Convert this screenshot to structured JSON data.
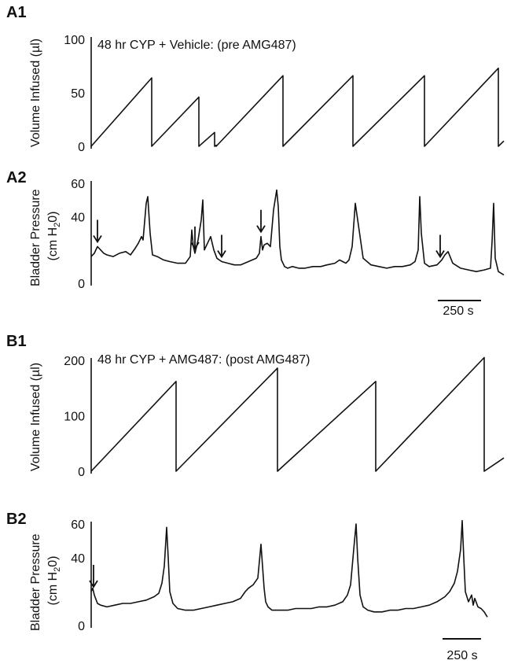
{
  "chart_data": [
    {
      "panel": "A1",
      "type": "line",
      "title": "48 hr CYP + Vehicle: (pre AMG487)",
      "ylabel": "Volume Infused (µl)",
      "ylim": [
        0,
        100
      ],
      "yticks": [
        0,
        50,
        100
      ],
      "x": [
        0,
        77,
        77,
        137,
        137,
        157,
        157,
        159,
        159,
        244,
        244,
        333,
        333,
        424,
        424,
        518,
        518,
        525
      ],
      "y": [
        0,
        64,
        0,
        46,
        0,
        13,
        0,
        1,
        0,
        66,
        0,
        66,
        0,
        66,
        0,
        73,
        0,
        5
      ]
    },
    {
      "panel": "A2",
      "type": "line",
      "ylabel_lines": [
        "Bladder Pressure",
        "(cm H",
        "2",
        "0)"
      ],
      "ylim": [
        0,
        60
      ],
      "yticks": [
        0,
        40,
        60
      ],
      "scale_bar": "250 s",
      "x": [
        0,
        4,
        8,
        12,
        16,
        20,
        28,
        36,
        44,
        50,
        56,
        60,
        64,
        66,
        70,
        72,
        75,
        78,
        84,
        92,
        100,
        110,
        120,
        126,
        128,
        130,
        132,
        136,
        140,
        142,
        144,
        148,
        152,
        156,
        160,
        166,
        174,
        182,
        190,
        200,
        210,
        214,
        216,
        218,
        220,
        224,
        228,
        232,
        236,
        238,
        240,
        242,
        246,
        250,
        256,
        264,
        272,
        282,
        292,
        300,
        310,
        316,
        320,
        324,
        328,
        332,
        336,
        346,
        356,
        366,
        376,
        386,
        396,
        406,
        412,
        416,
        418,
        420,
        424,
        430,
        440,
        446,
        450,
        454,
        460,
        470,
        480,
        490,
        500,
        508,
        510,
        512,
        514,
        518,
        525
      ],
      "y": [
        16,
        18,
        22,
        20,
        18,
        17,
        16,
        18,
        19,
        17,
        21,
        24,
        28,
        26,
        48,
        52,
        30,
        17,
        16,
        14,
        13,
        12,
        12,
        16,
        32,
        22,
        18,
        26,
        38,
        50,
        20,
        24,
        28,
        20,
        15,
        13,
        12,
        11,
        11,
        13,
        15,
        18,
        28,
        20,
        23,
        24,
        22,
        44,
        56,
        46,
        22,
        14,
        10,
        9,
        10,
        9,
        9,
        10,
        10,
        11,
        12,
        14,
        13,
        12,
        14,
        22,
        48,
        15,
        11,
        10,
        9,
        10,
        10,
        11,
        13,
        20,
        52,
        30,
        12,
        10,
        11,
        14,
        17,
        19,
        12,
        9,
        8,
        7,
        8,
        9,
        25,
        48,
        15,
        7,
        5
      ],
      "arrows_x": [
        8,
        132,
        166,
        216,
        444
      ]
    },
    {
      "panel": "B1",
      "type": "line",
      "title": "48 hr CYP + AMG487: (post AMG487)",
      "ylabel": "Volume Infused (µl)",
      "ylim": [
        0,
        200
      ],
      "yticks": [
        0,
        100,
        200
      ],
      "x": [
        0,
        108,
        108,
        237,
        237,
        362,
        362,
        500,
        500,
        525
      ],
      "y": [
        0,
        162,
        0,
        186,
        0,
        162,
        0,
        205,
        0,
        24
      ]
    },
    {
      "panel": "B2",
      "type": "line",
      "ylabel_lines": [
        "Bladder Pressure",
        "(cm H",
        "2",
        "0)"
      ],
      "ylim": [
        0,
        60
      ],
      "yticks": [
        0,
        40,
        60
      ],
      "scale_bar": "250 s",
      "x": [
        0,
        2,
        4,
        8,
        12,
        20,
        30,
        40,
        50,
        60,
        70,
        80,
        86,
        90,
        93,
        96,
        98,
        100,
        104,
        110,
        120,
        130,
        140,
        150,
        160,
        170,
        180,
        190,
        196,
        200,
        206,
        212,
        216,
        220,
        222,
        225,
        230,
        240,
        250,
        260,
        270,
        280,
        290,
        300,
        310,
        320,
        326,
        330,
        334,
        337,
        339,
        342,
        346,
        352,
        360,
        370,
        380,
        390,
        400,
        410,
        420,
        430,
        440,
        450,
        456,
        462,
        466,
        470,
        472,
        474,
        476,
        480,
        484,
        486,
        488,
        492,
        496,
        500,
        504
      ],
      "y": [
        20,
        22,
        18,
        13,
        12,
        11,
        12,
        13,
        13,
        14,
        15,
        17,
        19,
        25,
        35,
        58,
        40,
        20,
        13,
        10,
        9,
        9,
        10,
        11,
        12,
        13,
        14,
        16,
        20,
        22,
        24,
        28,
        48,
        22,
        14,
        11,
        9,
        9,
        9,
        10,
        10,
        10,
        11,
        11,
        12,
        14,
        18,
        24,
        45,
        60,
        40,
        18,
        11,
        9,
        8,
        8,
        9,
        9,
        10,
        10,
        11,
        12,
        14,
        17,
        20,
        25,
        32,
        45,
        62,
        40,
        20,
        14,
        18,
        12,
        16,
        11,
        10,
        8,
        5
      ],
      "arrows_x": [
        3
      ]
    }
  ]
}
